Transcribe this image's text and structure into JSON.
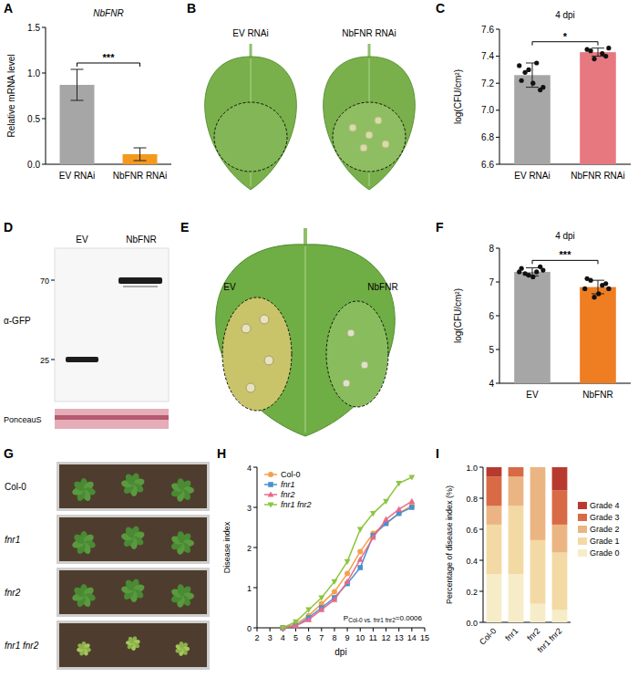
{
  "panel_labels": [
    "A",
    "B",
    "C",
    "D",
    "E",
    "F",
    "G",
    "H",
    "I"
  ],
  "chart_data": [
    {
      "type": "bar",
      "title": "NbFNR",
      "ylabel": "Relative mRNA level",
      "categories": [
        "EV RNAi",
        "NbFNR RNAi"
      ],
      "values": [
        0.87,
        0.11
      ],
      "errors": [
        0.17,
        0.07
      ],
      "colors": [
        "#a6a6a6",
        "#f39a1e"
      ],
      "ylim": [
        0,
        1.5
      ],
      "yticks": [
        {
          "value": 0,
          "label": "0.0"
        },
        0.5,
        {
          "value": 1,
          "label": "1.0"
        },
        1.5
      ],
      "annotation": "***"
    },
    {
      "type": "bar",
      "title": "4 dpi",
      "ylabel": "log(CFU/cm²)",
      "categories": [
        "EV RNAi",
        "NbFNR RNAi"
      ],
      "values": [
        7.26,
        7.43
      ],
      "errors": [
        0.09,
        0.03
      ],
      "points": [
        [
          7.22,
          7.35,
          7.3,
          7.17,
          7.28,
          7.15,
          7.2,
          7.33
        ],
        [
          7.45,
          7.42,
          7.38,
          7.46,
          7.44,
          7.4
        ]
      ],
      "colors": [
        "#a6a6a6",
        "#e8787f"
      ],
      "ylim": [
        6.6,
        7.6
      ],
      "yticks": [
        6.6,
        6.8,
        {
          "value": 7,
          "label": "7.0"
        },
        7.2,
        7.4,
        7.6
      ],
      "annotation": "*"
    },
    {
      "type": "bar",
      "title": "4 dpi",
      "ylabel": "log(CFU/cm²)",
      "categories": [
        "EV",
        "NbFNR"
      ],
      "values": [
        7.3,
        6.85
      ],
      "errors": [
        0.12,
        0.2
      ],
      "points": [
        [
          7.4,
          7.3,
          7.2,
          7.35,
          7.25,
          7.45,
          7.15,
          7.3
        ],
        [
          7.1,
          6.9,
          6.55,
          6.8,
          7.05,
          6.95,
          6.65,
          6.8
        ]
      ],
      "colors": [
        "#a6a6a6",
        "#ef7d22"
      ],
      "ylim": [
        4,
        8
      ],
      "yticks": [
        4,
        5,
        6,
        7,
        8
      ],
      "annotation": "***"
    },
    {
      "type": "line",
      "xlabel": "dpi",
      "ylabel": "Disease index",
      "x": [
        4,
        5,
        6,
        7,
        8,
        9,
        10,
        11,
        12,
        13,
        14
      ],
      "xlim": [
        2,
        15
      ],
      "xticks": [
        2,
        3,
        4,
        5,
        6,
        7,
        8,
        9,
        10,
        11,
        12,
        13,
        14,
        15
      ],
      "ylim": [
        0,
        4
      ],
      "yticks": [
        0,
        1,
        2,
        3,
        4
      ],
      "legend": "top-left",
      "series": [
        {
          "name": "Col-0",
          "color": "#f5a04a",
          "marker": "circle",
          "values": [
            0,
            0.1,
            0.3,
            0.6,
            0.9,
            1.35,
            1.9,
            2.35,
            2.6,
            2.85,
            3.05
          ]
        },
        {
          "name": "fnr1",
          "color": "#4a90d0",
          "marker": "square",
          "values": [
            0,
            0.05,
            0.25,
            0.5,
            0.75,
            1.1,
            1.5,
            2.3,
            2.6,
            2.85,
            3.0
          ]
        },
        {
          "name": "fnr2",
          "color": "#e86a88",
          "marker": "triangle-up",
          "values": [
            0,
            0.05,
            0.2,
            0.45,
            0.7,
            1.15,
            1.7,
            2.25,
            2.7,
            2.95,
            3.15
          ]
        },
        {
          "name": "fnr1 fnr2",
          "color": "#8cc63f",
          "marker": "triangle-down",
          "values": [
            0,
            0.15,
            0.45,
            0.75,
            1.15,
            1.65,
            2.45,
            2.85,
            3.15,
            3.6,
            3.75
          ]
        }
      ],
      "annotation": {
        "symbol": "P",
        "subscript": "Col-0 vs. fnr1 fnr2",
        "text": "=0.0006"
      }
    },
    {
      "type": "bar",
      "stacked": true,
      "ylabel": "Percentage of disease index (%)",
      "categories": [
        "Col-0",
        "fnr1",
        "fnr2",
        "fnr1 fnr2"
      ],
      "ylim": [
        0,
        1
      ],
      "yticks": [
        {
          "value": 0,
          "label": "0.0"
        },
        0.2,
        0.4,
        0.6,
        0.8,
        {
          "value": 1,
          "label": "1.0"
        }
      ],
      "legend": "right",
      "series": [
        {
          "name": "Grade 0",
          "color": "#f6edc8",
          "values": [
            0.31,
            0.31,
            0.12,
            0.08
          ]
        },
        {
          "name": "Grade 1",
          "color": "#f3d9a4",
          "values": [
            0.32,
            0.44,
            0.41,
            0.37
          ]
        },
        {
          "name": "Grade 2",
          "color": "#ebb583",
          "values": [
            0.12,
            0.19,
            0.47,
            0.18
          ]
        },
        {
          "name": "Grade 3",
          "color": "#d86a45",
          "values": [
            0.19,
            0.06,
            0,
            0.22
          ]
        },
        {
          "name": "Grade 4",
          "color": "#b83a2e",
          "values": [
            0.06,
            0,
            0,
            0.15
          ]
        }
      ]
    }
  ],
  "leaf_photo_B": {
    "labels": [
      "EV RNAi",
      "NbFNR RNAi"
    ]
  },
  "western_blot_D": {
    "lanes": [
      "EV",
      "NbFNR"
    ],
    "markers": [
      70,
      25
    ],
    "antibody": "α-GFP",
    "loading": "PonceauS"
  },
  "leaf_photo_E": {
    "labels": [
      "EV",
      "NbFNR"
    ]
  },
  "plant_photo_G": {
    "labels": [
      "Col-0",
      "fnr1",
      "fnr2",
      "fnr1 fnr2"
    ]
  }
}
